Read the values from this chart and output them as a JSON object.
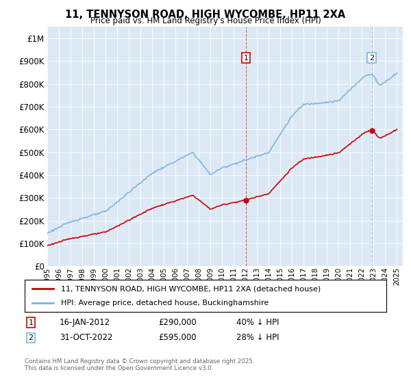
{
  "title": "11, TENNYSON ROAD, HIGH WYCOMBE, HP11 2XA",
  "subtitle": "Price paid vs. HM Land Registry's House Price Index (HPI)",
  "background_color": "#ffffff",
  "plot_bg_color": "#dce9f5",
  "hpi_color": "#7ab6e0",
  "price_color": "#cc0000",
  "vline1_color": "#cc0000",
  "vline2_color": "#7ab6e0",
  "ylim": [
    0,
    1050000
  ],
  "yticks": [
    0,
    100000,
    200000,
    300000,
    400000,
    500000,
    600000,
    700000,
    800000,
    900000,
    1000000
  ],
  "ytick_labels": [
    "£0",
    "£100K",
    "£200K",
    "£300K",
    "£400K",
    "£500K",
    "£600K",
    "£700K",
    "£800K",
    "£900K",
    "£1M"
  ],
  "sale1_year": 2012.04,
  "sale1_price": 290000,
  "sale2_year": 2022.83,
  "sale2_price": 595000,
  "legend_line1": "11, TENNYSON ROAD, HIGH WYCOMBE, HP11 2XA (detached house)",
  "legend_line2": "HPI: Average price, detached house, Buckinghamshire",
  "sale1_date_str": "16-JAN-2012",
  "sale1_price_str": "£290,000",
  "sale1_pct_str": "40% ↓ HPI",
  "sale2_date_str": "31-OCT-2022",
  "sale2_price_str": "£595,000",
  "sale2_pct_str": "28% ↓ HPI",
  "footer": "Contains HM Land Registry data © Crown copyright and database right 2025.\nThis data is licensed under the Open Government Licence v3.0.",
  "xlim": [
    1995,
    2025.5
  ],
  "xtick_start": 1995,
  "xtick_end": 2025
}
